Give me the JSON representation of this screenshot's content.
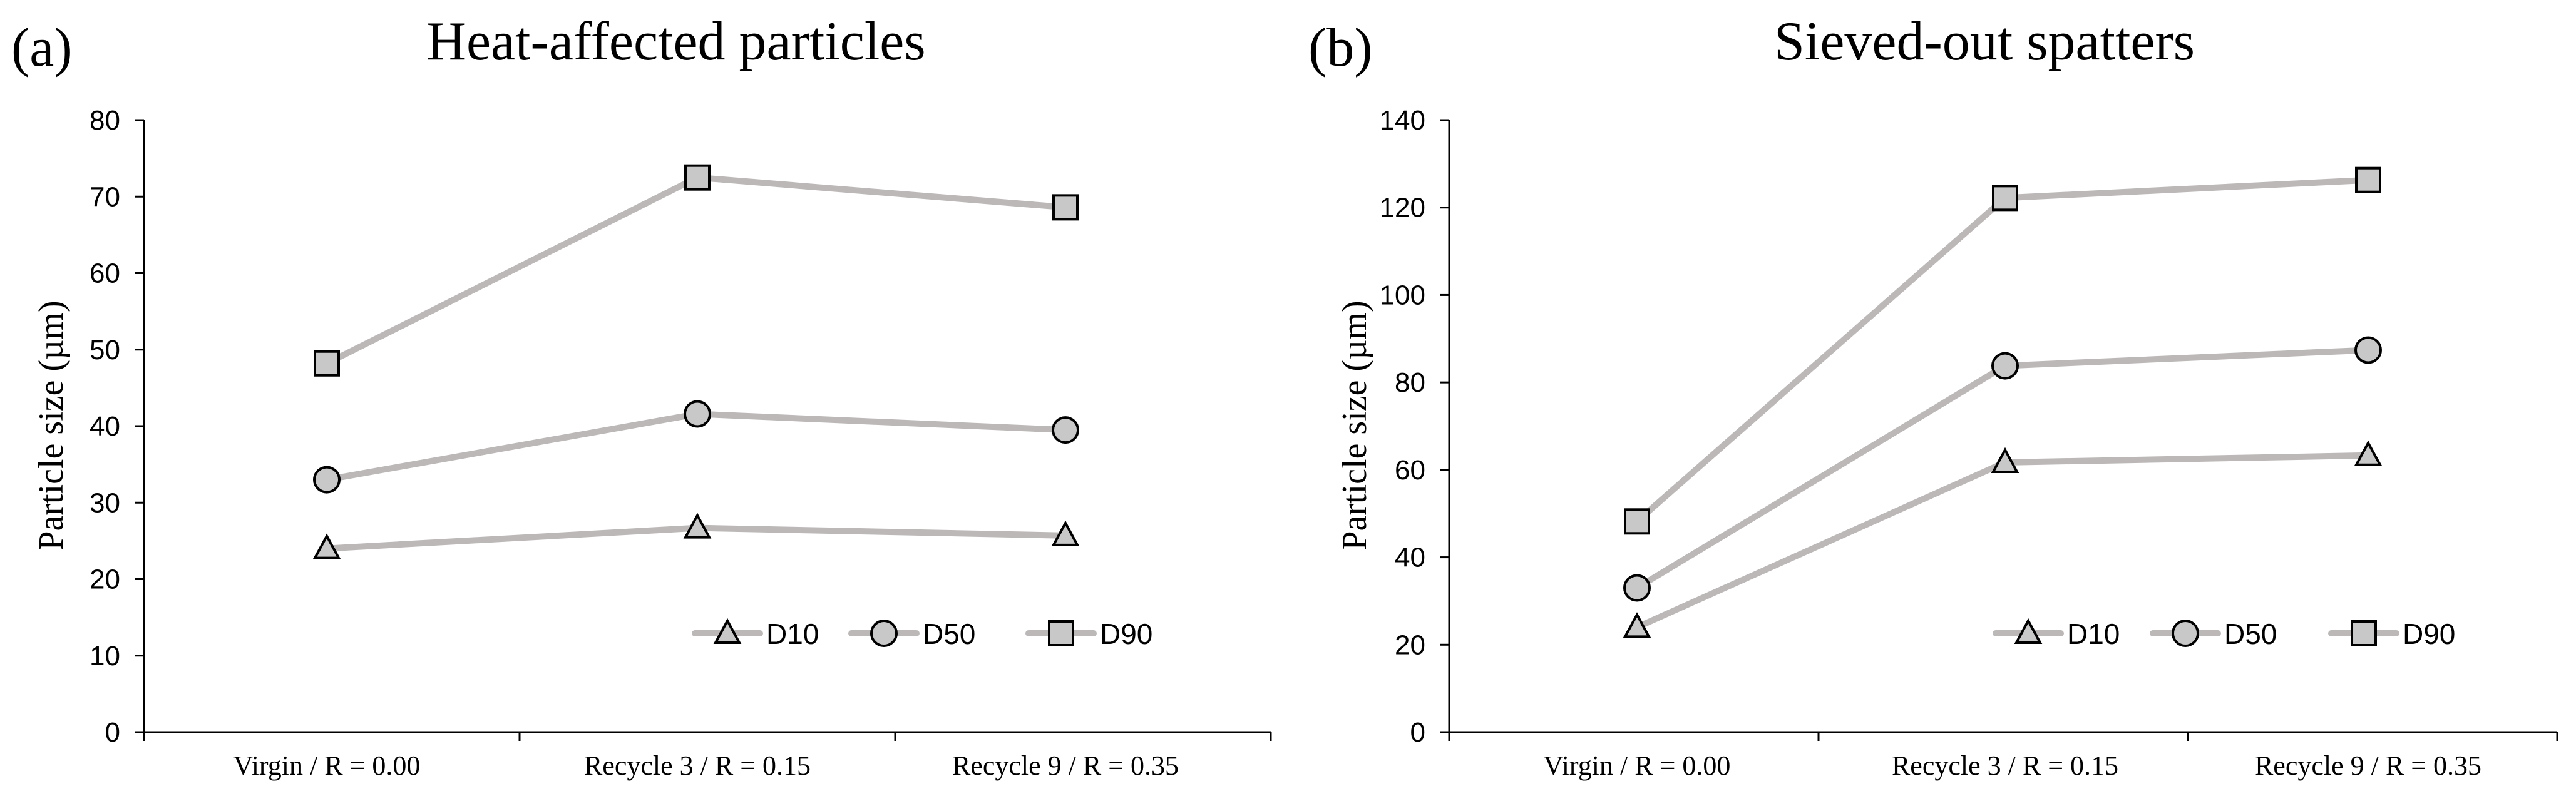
{
  "colors": {
    "line": "#bdb8b8",
    "marker_fill": "#c8c8c8",
    "axis": "#000000"
  },
  "chart_data": [
    {
      "type": "line",
      "panel_label": "(a)",
      "title": "Heat-affected  particles",
      "xlabel": "",
      "ylabel": "Particle size (µm)",
      "categories": [
        "Virgin / R = 0.00",
        "Recycle 3 / R = 0.15",
        "Recycle 9 / R = 0.35"
      ],
      "ylim": [
        0,
        80
      ],
      "yticks": [
        0,
        10,
        20,
        30,
        40,
        50,
        60,
        70,
        80
      ],
      "legend_position": "bottom-right",
      "series": [
        {
          "name": "D10",
          "marker": "triangle",
          "values": [
            24,
            26.7,
            25.7
          ]
        },
        {
          "name": "D50",
          "marker": "circle",
          "values": [
            33,
            41.6,
            39.5
          ]
        },
        {
          "name": "D90",
          "marker": "square",
          "values": [
            48.2,
            72.5,
            68.6
          ]
        }
      ]
    },
    {
      "type": "line",
      "panel_label": "(b)",
      "title": "Sieved-out  spatters",
      "xlabel": "",
      "ylabel": "Particle  size  (µm)",
      "categories": [
        "Virgin / R = 0.00",
        "Recycle 3 / R = 0.15",
        "Recycle 9 / R = 0.35"
      ],
      "ylim": [
        0,
        140
      ],
      "yticks": [
        0,
        20,
        40,
        60,
        80,
        100,
        120,
        140
      ],
      "legend_position": "bottom-right",
      "series": [
        {
          "name": "D10",
          "marker": "triangle",
          "values": [
            24,
            61.7,
            63.3
          ]
        },
        {
          "name": "D50",
          "marker": "circle",
          "values": [
            33,
            83.8,
            87.4
          ]
        },
        {
          "name": "D90",
          "marker": "square",
          "values": [
            48.2,
            122.2,
            126.3
          ]
        }
      ]
    }
  ]
}
